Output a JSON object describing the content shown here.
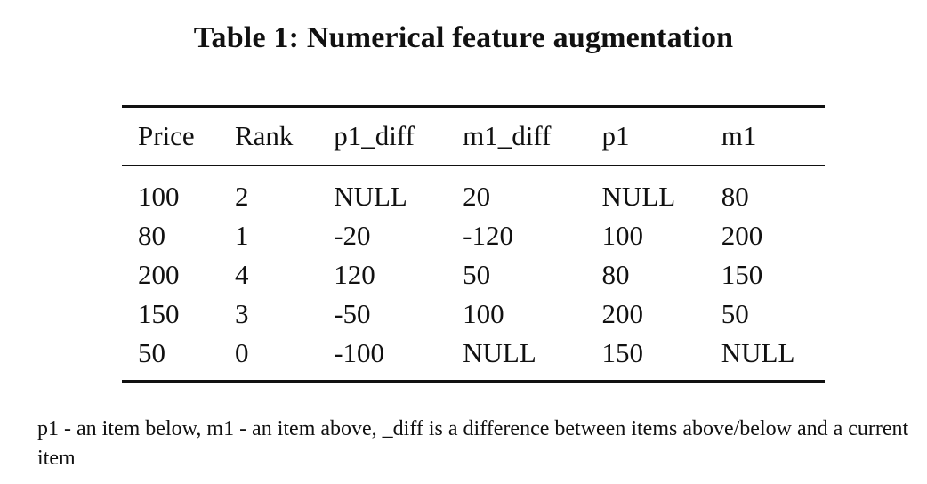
{
  "caption": "Table 1: Numerical feature augmentation",
  "table": {
    "headers": [
      "Price",
      "Rank",
      "p1_diff",
      "m1_diff",
      "p1",
      "m1"
    ],
    "rows": [
      [
        "100",
        "2",
        "NULL",
        "20",
        "NULL",
        "80"
      ],
      [
        "80",
        "1",
        "-20",
        "-120",
        "100",
        "200"
      ],
      [
        "200",
        "4",
        "120",
        "50",
        "80",
        "150"
      ],
      [
        "150",
        "3",
        "-50",
        "100",
        "200",
        "50"
      ],
      [
        "50",
        "0",
        "-100",
        "NULL",
        "150",
        "NULL"
      ]
    ]
  },
  "footnote": "p1 - an item below, m1 - an item above, _diff is a difference between items above/below and a current item"
}
